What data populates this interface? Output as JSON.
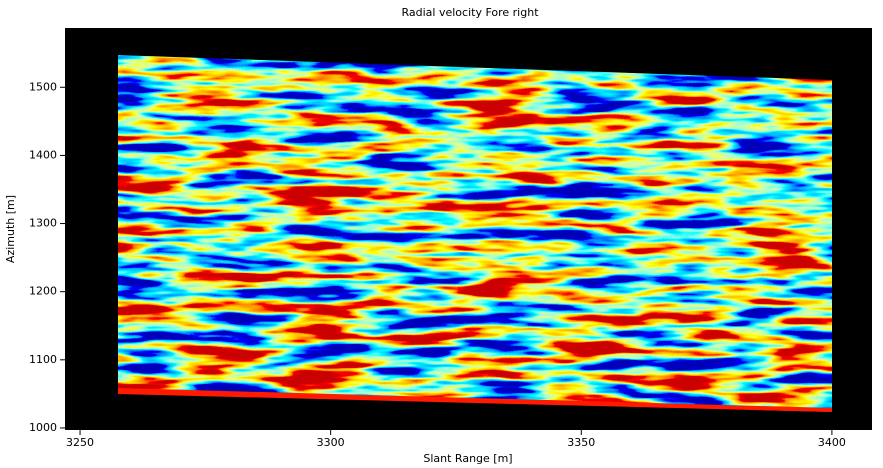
{
  "chart_data": {
    "type": "heatmap",
    "title": "Radial velocity Fore right",
    "xlabel": "Slant Range [m]",
    "ylabel": "Azimuth [m]",
    "xlim": [
      3247,
      3408
    ],
    "ylim": [
      997,
      1587
    ],
    "xticks": [
      3250,
      3300,
      3350,
      3400
    ],
    "yticks": [
      1000,
      1100,
      1200,
      1300,
      1400,
      1500
    ]
  }
}
